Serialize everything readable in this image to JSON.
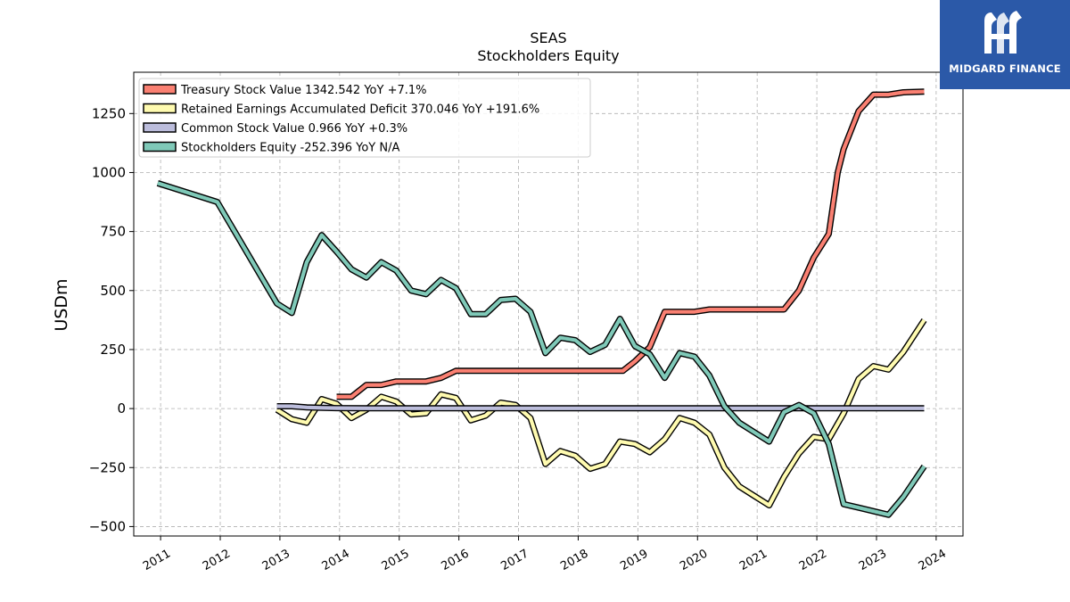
{
  "brand": {
    "name": "MIDGARD FINANCE",
    "color": "#2b59a8"
  },
  "chart_data": {
    "type": "line",
    "title": "SEAS",
    "subtitle": "Stockholders  Equity",
    "ylabel": "USDm",
    "xlabel": "",
    "xlim": [
      2010.55,
      2024.45
    ],
    "ylim": [
      -540,
      1425
    ],
    "yticks": [
      -500,
      -250,
      0,
      250,
      500,
      750,
      1000,
      1250
    ],
    "ytick_labels": [
      "−500",
      "−250",
      "0",
      "250",
      "500",
      "750",
      "1000",
      "1250"
    ],
    "xticks": [
      2011,
      2012,
      2013,
      2014,
      2015,
      2016,
      2017,
      2018,
      2019,
      2020,
      2021,
      2022,
      2023,
      2024
    ],
    "xtick_labels": [
      "2011",
      "2012",
      "2013",
      "2014",
      "2015",
      "2016",
      "2017",
      "2018",
      "2019",
      "2020",
      "2021",
      "2022",
      "2023",
      "2024"
    ],
    "grid": true,
    "legend_position": "top-left",
    "series": [
      {
        "name": "Treasury Stock Value  1342.542 YoY +7.1%",
        "color": "#fa8072",
        "x": [
          2013.95,
          2014.2,
          2014.45,
          2014.7,
          2014.95,
          2015.2,
          2015.45,
          2015.7,
          2015.95,
          2016.2,
          2016.45,
          2016.7,
          2016.95,
          2017.2,
          2017.45,
          2017.7,
          2017.95,
          2018.2,
          2018.45,
          2018.75,
          2018.95,
          2019.2,
          2019.45,
          2019.7,
          2019.95,
          2020.2,
          2020.45,
          2020.7,
          2020.95,
          2021.2,
          2021.45,
          2021.7,
          2021.95,
          2022.2,
          2022.35,
          2022.45,
          2022.7,
          2022.95,
          2023.2,
          2023.45,
          2023.8
        ],
        "y": [
          50,
          50,
          100,
          100,
          115,
          115,
          115,
          130,
          160,
          160,
          160,
          160,
          160,
          160,
          160,
          160,
          160,
          160,
          160,
          160,
          200,
          260,
          410,
          410,
          410,
          420,
          420,
          420,
          420,
          420,
          420,
          500,
          640,
          740,
          1000,
          1100,
          1260,
          1330,
          1330,
          1340,
          1343
        ]
      },
      {
        "name": "Retained Earnings Accumulated Deficit  370.046 YoY +191.6%",
        "color": "#fffbb0",
        "x": [
          2012.95,
          2013.2,
          2013.45,
          2013.7,
          2013.95,
          2014.2,
          2014.45,
          2014.7,
          2014.95,
          2015.2,
          2015.45,
          2015.7,
          2015.95,
          2016.2,
          2016.45,
          2016.7,
          2016.95,
          2017.2,
          2017.45,
          2017.7,
          2017.95,
          2018.2,
          2018.45,
          2018.7,
          2018.95,
          2019.2,
          2019.45,
          2019.7,
          2019.95,
          2020.2,
          2020.45,
          2020.7,
          2020.95,
          2021.2,
          2021.45,
          2021.7,
          2021.95,
          2022.2,
          2022.45,
          2022.7,
          2022.95,
          2023.2,
          2023.45,
          2023.8
        ],
        "y": [
          -5,
          -45,
          -60,
          40,
          20,
          -40,
          -5,
          50,
          30,
          -25,
          -20,
          60,
          45,
          -50,
          -30,
          25,
          15,
          -40,
          -235,
          -180,
          -200,
          -255,
          -235,
          -140,
          -150,
          -185,
          -130,
          -40,
          -60,
          -110,
          -250,
          -330,
          -370,
          -410,
          -290,
          -190,
          -120,
          -130,
          -20,
          125,
          180,
          165,
          240,
          375
        ]
      },
      {
        "name": "Common Stock Value  0.966 YoY +0.3%",
        "color": "#bcbddc",
        "x": [
          2012.95,
          2013.2,
          2013.45,
          2013.7,
          2013.95,
          2014.5,
          2015,
          2016,
          2017,
          2018,
          2019,
          2020,
          2021,
          2022,
          2023,
          2023.8
        ],
        "y": [
          10,
          10,
          5,
          3,
          2,
          1,
          1,
          1,
          1,
          1,
          1,
          1,
          1,
          1,
          1,
          1
        ]
      },
      {
        "name": "Stockholders Equity  -252.396 YoY N/A",
        "color": "#7fc9b8",
        "x": [
          2010.95,
          2011.95,
          2012.95,
          2013.2,
          2013.45,
          2013.7,
          2013.95,
          2014.2,
          2014.45,
          2014.7,
          2014.95,
          2015.2,
          2015.45,
          2015.7,
          2015.95,
          2016.2,
          2016.45,
          2016.7,
          2016.95,
          2017.2,
          2017.45,
          2017.7,
          2017.95,
          2018.2,
          2018.45,
          2018.7,
          2018.95,
          2019.2,
          2019.45,
          2019.7,
          2019.95,
          2020.2,
          2020.45,
          2020.7,
          2020.95,
          2021.2,
          2021.45,
          2021.7,
          2021.95,
          2022.2,
          2022.45,
          2022.7,
          2022.95,
          2023.2,
          2023.45,
          2023.8
        ],
        "y": [
          955,
          875,
          445,
          405,
          620,
          735,
          665,
          590,
          555,
          620,
          585,
          500,
          485,
          545,
          510,
          400,
          400,
          460,
          465,
          410,
          235,
          300,
          290,
          240,
          270,
          380,
          265,
          230,
          130,
          235,
          220,
          140,
          10,
          -60,
          -100,
          -140,
          -15,
          15,
          -20,
          -150,
          -405,
          -420,
          -435,
          -450,
          -375,
          -245
        ]
      }
    ]
  }
}
